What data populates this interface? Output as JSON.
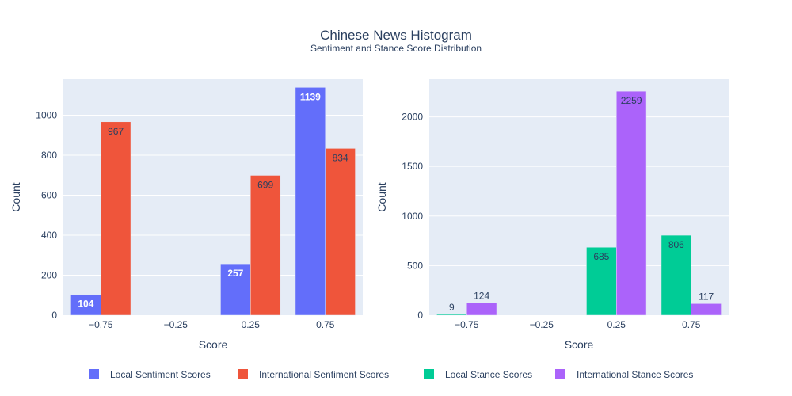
{
  "title": "Chinese News Histogram",
  "subtitle": "Sentiment and Stance Score Distribution",
  "chart_data": [
    {
      "type": "bar",
      "categories": [
        "−0.75",
        "−0.25",
        "0.25",
        "0.75"
      ],
      "x": [
        -0.75,
        -0.25,
        0.25,
        0.75
      ],
      "series": [
        {
          "name": "Local Sentiment Scores",
          "color": "#636efa",
          "values": [
            104,
            0,
            257,
            1139
          ]
        },
        {
          "name": "International Sentiment Scores",
          "color": "#ef553b",
          "values": [
            967,
            0,
            699,
            834
          ]
        }
      ],
      "xlabel": "Score",
      "ylabel": "Count",
      "ylim": [
        0,
        1180
      ],
      "yticks": [
        0,
        200,
        400,
        600,
        800,
        1000
      ]
    },
    {
      "type": "bar",
      "categories": [
        "−0.75",
        "−0.25",
        "0.25",
        "0.75"
      ],
      "x": [
        -0.75,
        -0.25,
        0.25,
        0.75
      ],
      "series": [
        {
          "name": "Local Stance Scores",
          "color": "#00cc96",
          "values": [
            9,
            0,
            685,
            806
          ]
        },
        {
          "name": "International Stance Scores",
          "color": "#ab63fa",
          "values": [
            124,
            0,
            2259,
            117
          ]
        }
      ],
      "xlabel": "Score",
      "ylabel": "Count",
      "ylim": [
        0,
        2380
      ],
      "yticks": [
        0,
        500,
        1000,
        1500,
        2000
      ]
    }
  ],
  "legend": {
    "placement": "bottom",
    "items": [
      {
        "name": "Local Sentiment Scores",
        "color": "#636efa"
      },
      {
        "name": "International Sentiment Scores",
        "color": "#ef553b"
      },
      {
        "name": "Local Stance Scores",
        "color": "#00cc96"
      },
      {
        "name": "International Stance Scores",
        "color": "#ab63fa"
      }
    ]
  }
}
